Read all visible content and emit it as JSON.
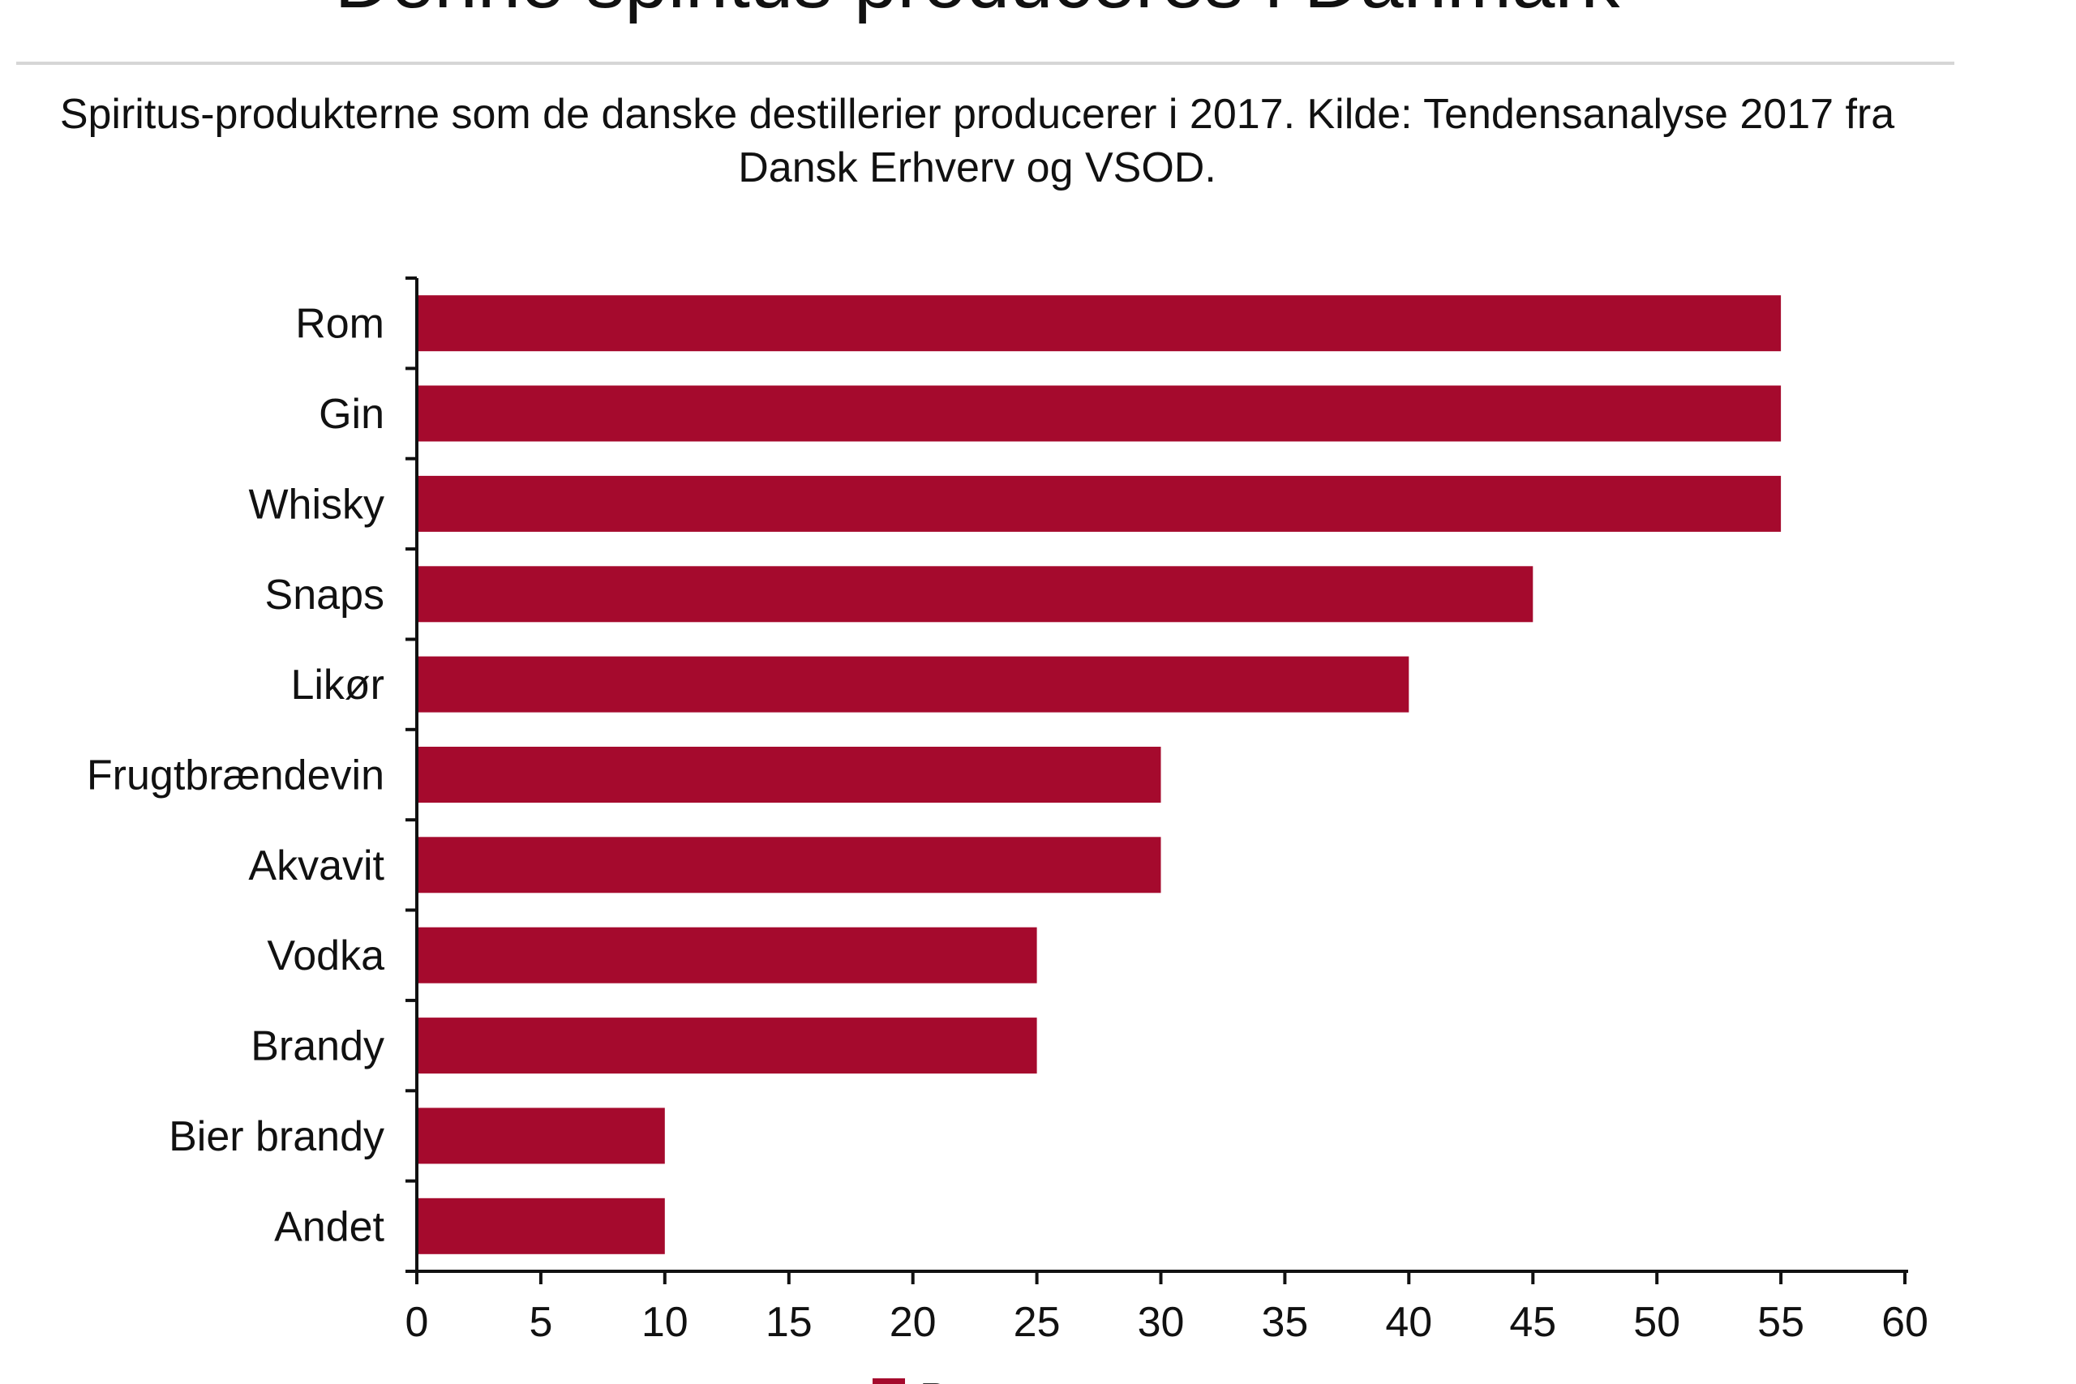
{
  "chart_data": {
    "type": "bar",
    "orientation": "horizontal",
    "title": "Denne spiritus produceres i Danmark",
    "subtitle": "Spiritus-produkterne som de danske destillerier producerer i 2017. Kilde: Tendensanalyse 2017 fra Dansk Erhverv og VSOD.",
    "categories": [
      "Rom",
      "Gin",
      "Whisky",
      "Snaps",
      "Likør",
      "Frugtbrændevin",
      "Akvavit",
      "Vodka",
      "Brandy",
      "Bier brandy",
      "Andet"
    ],
    "series": [
      {
        "name": "Pct.",
        "values": [
          55,
          55,
          55,
          45,
          40,
          30,
          30,
          25,
          25,
          10,
          10
        ]
      }
    ],
    "xlim": [
      0,
      60
    ],
    "xticks": [
      "0",
      "5",
      "10",
      "15",
      "20",
      "25",
      "30",
      "35",
      "40",
      "45",
      "50",
      "55",
      "60"
    ],
    "xlabel": "",
    "ylabel": "",
    "grid": false,
    "legend_position": "bottom-center",
    "colors": {
      "bar": "#a50a2d",
      "axis": "#111111"
    }
  }
}
